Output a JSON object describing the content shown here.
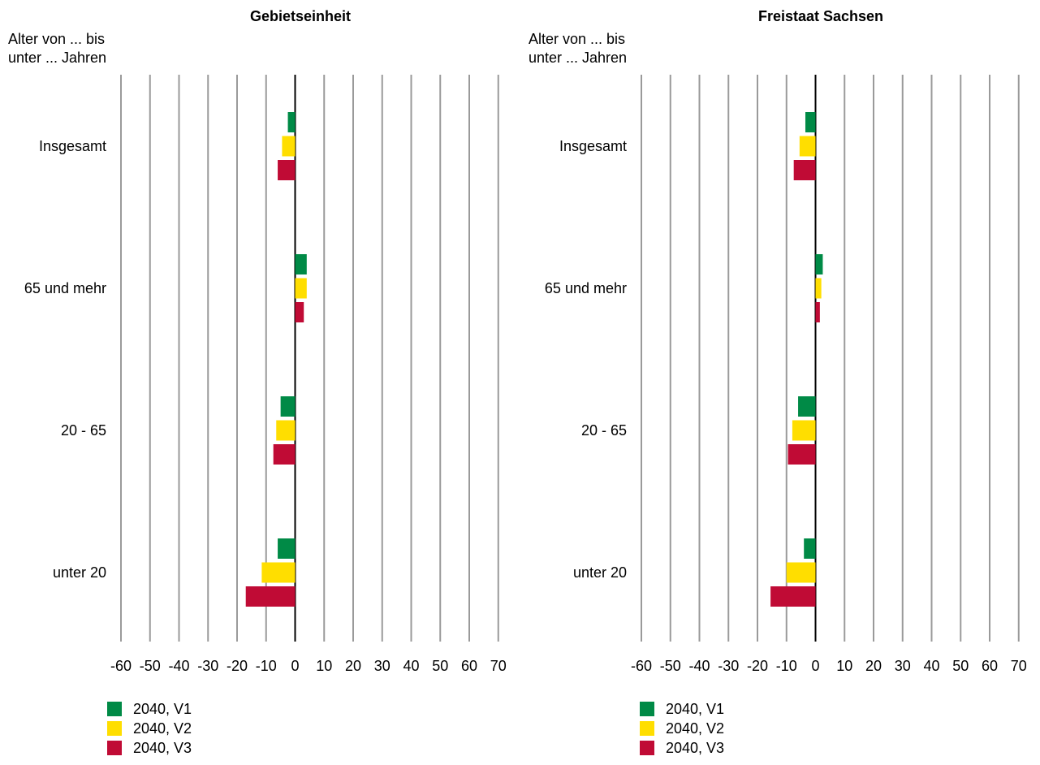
{
  "colors": {
    "V1": "#008a46",
    "V2": "#ffde00",
    "V3": "#c00b35",
    "grid": "#9a9a9a",
    "zero": "#000000"
  },
  "chart_data": [
    {
      "type": "bar",
      "orientation": "horizontal",
      "title": "Gebietseinheit",
      "ylabel": "Alter von ... bis unter ... Jahren",
      "ylabel_lines": [
        "Alter von ... bis",
        "unter ... Jahren"
      ],
      "categories": [
        "Insgesamt",
        "65 und mehr",
        "20 - 65",
        "unter 20"
      ],
      "xlim": [
        -60,
        70
      ],
      "xticks": [
        -60,
        -50,
        -40,
        -30,
        -20,
        -10,
        0,
        10,
        20,
        30,
        40,
        50,
        60,
        70
      ],
      "grid": true,
      "legend": "bottom-left",
      "series": [
        {
          "name": "2040, V1",
          "values": [
            -2.5,
            4.0,
            -5.0,
            -6.0
          ]
        },
        {
          "name": "2040, V2",
          "values": [
            -4.5,
            4.0,
            -6.5,
            -11.5
          ]
        },
        {
          "name": "2040, V3",
          "values": [
            -6.0,
            3.0,
            -7.5,
            -17.0
          ]
        }
      ]
    },
    {
      "type": "bar",
      "orientation": "horizontal",
      "title": "Freistaat Sachsen",
      "ylabel": "Alter von ... bis unter ... Jahren",
      "ylabel_lines": [
        "Alter von ... bis",
        "unter ... Jahren"
      ],
      "categories": [
        "Insgesamt",
        "65 und mehr",
        "20 - 65",
        "unter 20"
      ],
      "xlim": [
        -60,
        70
      ],
      "xticks": [
        -60,
        -50,
        -40,
        -30,
        -20,
        -10,
        0,
        10,
        20,
        30,
        40,
        50,
        60,
        70
      ],
      "grid": true,
      "legend": "bottom-left",
      "series": [
        {
          "name": "2040, V1",
          "values": [
            -3.5,
            2.5,
            -6.0,
            -4.0
          ]
        },
        {
          "name": "2040, V2",
          "values": [
            -5.5,
            2.0,
            -8.0,
            -10.0
          ]
        },
        {
          "name": "2040, V3",
          "values": [
            -7.5,
            1.5,
            -9.5,
            -15.5
          ]
        }
      ]
    }
  ]
}
